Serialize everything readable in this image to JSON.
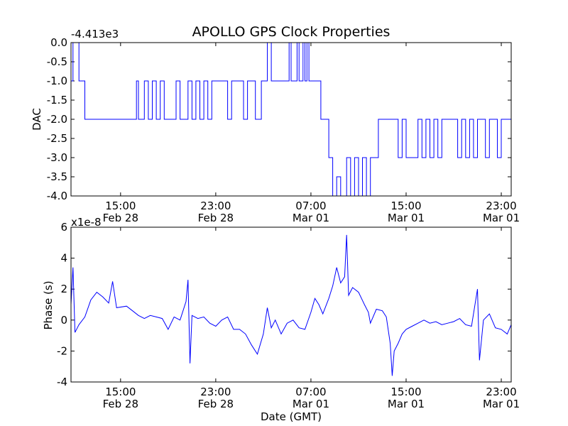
{
  "chart_data": [
    {
      "type": "line",
      "title": "APOLLO GPS Clock Properties",
      "xlabel": "",
      "ylabel": "DAC",
      "offset_text": "-4.413e3",
      "x_axis_type": "date",
      "xlim": [
        "Feb 28 10:50",
        "Mar 01 23:50"
      ],
      "ylim": [
        -4.0,
        0.0
      ],
      "x_ticks": [
        {
          "time": "Feb 28 15:00",
          "line1": "15:00",
          "line2": "Feb 28"
        },
        {
          "time": "Feb 28 23:00",
          "line1": "23:00",
          "line2": "Feb 28"
        },
        {
          "time": "Mar 01 07:00",
          "line1": "07:00",
          "line2": "Mar 01"
        },
        {
          "time": "Mar 01 15:00",
          "line1": "15:00",
          "line2": "Mar 01"
        },
        {
          "time": "Mar 01 23:00",
          "line1": "23:00",
          "line2": "Mar 01"
        }
      ],
      "y_ticks": [
        {
          "value": 0.0,
          "label": "0.0"
        },
        {
          "value": -0.5,
          "label": "-0.5"
        },
        {
          "value": -1.0,
          "label": "-1.0"
        },
        {
          "value": -1.5,
          "label": "-1.5"
        },
        {
          "value": -2.0,
          "label": "-2.0"
        },
        {
          "value": -2.5,
          "label": "-2.5"
        },
        {
          "value": -3.0,
          "label": "-3.0"
        },
        {
          "value": -3.5,
          "label": "-3.5"
        },
        {
          "value": -4.0,
          "label": "-4.0"
        }
      ],
      "series": [
        {
          "color": "#0000ff",
          "points": [
            {
              "x": "Feb 28 10:50",
              "y": -1.0
            },
            {
              "x": "Feb 28 11:00",
              "y": 0.0
            },
            {
              "x": "Feb 28 11:30",
              "y": -1.0
            },
            {
              "x": "Feb 28 12:00",
              "y": -2.0
            },
            {
              "x": "Feb 28 15:40",
              "y": -2.0
            },
            {
              "x": "Feb 28 16:20",
              "y": -1.0
            },
            {
              "x": "Feb 28 16:30",
              "y": -2.0
            },
            {
              "x": "Feb 28 17:00",
              "y": -1.0
            },
            {
              "x": "Feb 28 17:20",
              "y": -2.0
            },
            {
              "x": "Feb 28 17:40",
              "y": -1.0
            },
            {
              "x": "Feb 28 18:00",
              "y": -2.0
            },
            {
              "x": "Feb 28 18:20",
              "y": -1.0
            },
            {
              "x": "Feb 28 18:40",
              "y": -2.0
            },
            {
              "x": "Feb 28 19:40",
              "y": -1.0
            },
            {
              "x": "Feb 28 20:00",
              "y": -2.0
            },
            {
              "x": "Feb 28 20:40",
              "y": -1.0
            },
            {
              "x": "Feb 28 21:00",
              "y": -2.0
            },
            {
              "x": "Feb 28 21:20",
              "y": -1.0
            },
            {
              "x": "Feb 28 21:40",
              "y": -2.0
            },
            {
              "x": "Feb 28 22:00",
              "y": -1.0
            },
            {
              "x": "Feb 28 22:20",
              "y": -2.0
            },
            {
              "x": "Feb 28 22:40",
              "y": -1.0
            },
            {
              "x": "Feb 28 23:40",
              "y": -1.0
            },
            {
              "x": "Mar 01 00:00",
              "y": -2.0
            },
            {
              "x": "Mar 01 00:20",
              "y": -1.0
            },
            {
              "x": "Mar 01 01:00",
              "y": -1.0
            },
            {
              "x": "Mar 01 01:20",
              "y": -2.0
            },
            {
              "x": "Mar 01 01:40",
              "y": -1.0
            },
            {
              "x": "Mar 01 02:10",
              "y": -1.0
            },
            {
              "x": "Mar 01 02:20",
              "y": -2.0
            },
            {
              "x": "Mar 01 02:50",
              "y": -1.0
            },
            {
              "x": "Mar 01 03:20",
              "y": 0.0
            },
            {
              "x": "Mar 01 03:40",
              "y": -1.0
            },
            {
              "x": "Mar 01 04:50",
              "y": -1.0
            },
            {
              "x": "Mar 01 05:10",
              "y": 0.0
            },
            {
              "x": "Mar 01 05:20",
              "y": -1.0
            },
            {
              "x": "Mar 01 05:50",
              "y": 0.0
            },
            {
              "x": "Mar 01 06:00",
              "y": -1.0
            },
            {
              "x": "Mar 01 06:20",
              "y": 0.0
            },
            {
              "x": "Mar 01 06:30",
              "y": -1.0
            },
            {
              "x": "Mar 01 06:40",
              "y": 0.0
            },
            {
              "x": "Mar 01 06:50",
              "y": -1.0
            },
            {
              "x": "Mar 01 07:30",
              "y": -1.0
            },
            {
              "x": "Mar 01 07:50",
              "y": -2.0
            },
            {
              "x": "Mar 01 08:30",
              "y": -3.0
            },
            {
              "x": "Mar 01 08:50",
              "y": -4.0
            },
            {
              "x": "Mar 01 09:10",
              "y": -3.5
            },
            {
              "x": "Mar 01 09:30",
              "y": -4.0
            },
            {
              "x": "Mar 01 10:00",
              "y": -3.0
            },
            {
              "x": "Mar 01 10:20",
              "y": -4.0
            },
            {
              "x": "Mar 01 10:40",
              "y": -3.0
            },
            {
              "x": "Mar 01 11:00",
              "y": -4.0
            },
            {
              "x": "Mar 01 11:20",
              "y": -3.0
            },
            {
              "x": "Mar 01 11:40",
              "y": -4.0
            },
            {
              "x": "Mar 01 12:00",
              "y": -3.0
            },
            {
              "x": "Mar 01 12:40",
              "y": -2.0
            },
            {
              "x": "Mar 01 14:00",
              "y": -2.0
            },
            {
              "x": "Mar 01 14:20",
              "y": -3.0
            },
            {
              "x": "Mar 01 14:40",
              "y": -2.0
            },
            {
              "x": "Mar 01 15:00",
              "y": -3.0
            },
            {
              "x": "Mar 01 15:40",
              "y": -3.0
            },
            {
              "x": "Mar 01 16:00",
              "y": -2.0
            },
            {
              "x": "Mar 01 16:20",
              "y": -3.0
            },
            {
              "x": "Mar 01 16:40",
              "y": -2.0
            },
            {
              "x": "Mar 01 17:00",
              "y": -3.0
            },
            {
              "x": "Mar 01 17:20",
              "y": -2.0
            },
            {
              "x": "Mar 01 17:40",
              "y": -3.0
            },
            {
              "x": "Mar 01 18:00",
              "y": -2.0
            },
            {
              "x": "Mar 01 19:00",
              "y": -2.0
            },
            {
              "x": "Mar 01 19:20",
              "y": -3.0
            },
            {
              "x": "Mar 01 19:40",
              "y": -2.0
            },
            {
              "x": "Mar 01 20:00",
              "y": -3.0
            },
            {
              "x": "Mar 01 20:20",
              "y": -2.0
            },
            {
              "x": "Mar 01 20:40",
              "y": -3.0
            },
            {
              "x": "Mar 01 21:00",
              "y": -2.0
            },
            {
              "x": "Mar 01 21:20",
              "y": -2.0
            },
            {
              "x": "Mar 01 21:40",
              "y": -3.0
            },
            {
              "x": "Mar 01 22:00",
              "y": -2.0
            },
            {
              "x": "Mar 01 22:40",
              "y": -3.0
            },
            {
              "x": "Mar 01 23:00",
              "y": -2.0
            },
            {
              "x": "Mar 01 23:50",
              "y": -2.0
            }
          ]
        }
      ]
    },
    {
      "type": "line",
      "title": "",
      "xlabel": "Date (GMT)",
      "ylabel": "Phase (s)",
      "offset_text": "x1e-8",
      "x_axis_type": "date",
      "xlim": [
        "Feb 28 10:50",
        "Mar 01 23:50"
      ],
      "ylim": [
        -4,
        6
      ],
      "x_ticks": [
        {
          "time": "Feb 28 15:00",
          "line1": "15:00",
          "line2": "Feb 28"
        },
        {
          "time": "Feb 28 23:00",
          "line1": "23:00",
          "line2": "Feb 28"
        },
        {
          "time": "Mar 01 07:00",
          "line1": "07:00",
          "line2": "Mar 01"
        },
        {
          "time": "Mar 01 15:00",
          "line1": "15:00",
          "line2": "Mar 01"
        },
        {
          "time": "Mar 01 23:00",
          "line1": "23:00",
          "line2": "Mar 01"
        }
      ],
      "y_ticks": [
        {
          "value": 6,
          "label": "6"
        },
        {
          "value": 4,
          "label": "4"
        },
        {
          "value": 2,
          "label": "2"
        },
        {
          "value": 0,
          "label": "0"
        },
        {
          "value": -2,
          "label": "-2"
        },
        {
          "value": -4,
          "label": "-4"
        }
      ],
      "series": [
        {
          "color": "#0000ff",
          "points": [
            {
              "x": "Feb 28 10:50",
              "y": 1.0
            },
            {
              "x": "Feb 28 11:00",
              "y": 3.4
            },
            {
              "x": "Feb 28 11:10",
              "y": -0.8
            },
            {
              "x": "Feb 28 11:30",
              "y": -0.3
            },
            {
              "x": "Feb 28 12:00",
              "y": 0.2
            },
            {
              "x": "Feb 28 12:30",
              "y": 1.3
            },
            {
              "x": "Feb 28 13:00",
              "y": 1.8
            },
            {
              "x": "Feb 28 13:30",
              "y": 1.5
            },
            {
              "x": "Feb 28 14:00",
              "y": 1.1
            },
            {
              "x": "Feb 28 14:20",
              "y": 2.5
            },
            {
              "x": "Feb 28 14:40",
              "y": 0.8
            },
            {
              "x": "Feb 28 15:30",
              "y": 0.9
            },
            {
              "x": "Feb 28 16:00",
              "y": 0.6
            },
            {
              "x": "Feb 28 16:30",
              "y": 0.3
            },
            {
              "x": "Feb 28 17:00",
              "y": 0.1
            },
            {
              "x": "Feb 28 17:30",
              "y": 0.3
            },
            {
              "x": "Feb 28 18:00",
              "y": 0.2
            },
            {
              "x": "Feb 28 18:30",
              "y": 0.1
            },
            {
              "x": "Feb 28 19:00",
              "y": -0.6
            },
            {
              "x": "Feb 28 19:30",
              "y": 0.2
            },
            {
              "x": "Feb 28 20:00",
              "y": 0.0
            },
            {
              "x": "Feb 28 20:30",
              "y": 1.2
            },
            {
              "x": "Feb 28 20:40",
              "y": 2.6
            },
            {
              "x": "Feb 28 20:50",
              "y": -2.8
            },
            {
              "x": "Feb 28 21:00",
              "y": 0.3
            },
            {
              "x": "Feb 28 21:30",
              "y": 0.1
            },
            {
              "x": "Feb 28 22:00",
              "y": 0.2
            },
            {
              "x": "Feb 28 22:30",
              "y": -0.2
            },
            {
              "x": "Feb 28 23:00",
              "y": -0.4
            },
            {
              "x": "Feb 28 23:30",
              "y": 0.0
            },
            {
              "x": "Mar 01 00:00",
              "y": 0.2
            },
            {
              "x": "Mar 01 00:30",
              "y": -0.6
            },
            {
              "x": "Mar 01 01:00",
              "y": -0.6
            },
            {
              "x": "Mar 01 01:30",
              "y": -0.9
            },
            {
              "x": "Mar 01 02:00",
              "y": -1.6
            },
            {
              "x": "Mar 01 02:30",
              "y": -2.2
            },
            {
              "x": "Mar 01 03:00",
              "y": -0.9
            },
            {
              "x": "Mar 01 03:20",
              "y": 0.8
            },
            {
              "x": "Mar 01 03:40",
              "y": -0.5
            },
            {
              "x": "Mar 01 04:00",
              "y": 0.0
            },
            {
              "x": "Mar 01 04:30",
              "y": -0.9
            },
            {
              "x": "Mar 01 05:00",
              "y": -0.2
            },
            {
              "x": "Mar 01 05:30",
              "y": 0.0
            },
            {
              "x": "Mar 01 06:00",
              "y": -0.5
            },
            {
              "x": "Mar 01 06:30",
              "y": -0.6
            },
            {
              "x": "Mar 01 07:00",
              "y": 0.5
            },
            {
              "x": "Mar 01 07:20",
              "y": 1.4
            },
            {
              "x": "Mar 01 07:40",
              "y": 1.0
            },
            {
              "x": "Mar 01 08:00",
              "y": 0.4
            },
            {
              "x": "Mar 01 08:30",
              "y": 1.4
            },
            {
              "x": "Mar 01 08:50",
              "y": 2.2
            },
            {
              "x": "Mar 01 09:10",
              "y": 3.4
            },
            {
              "x": "Mar 01 09:30",
              "y": 2.4
            },
            {
              "x": "Mar 01 09:50",
              "y": 2.8
            },
            {
              "x": "Mar 01 10:00",
              "y": 5.5
            },
            {
              "x": "Mar 01 10:10",
              "y": 1.6
            },
            {
              "x": "Mar 01 10:30",
              "y": 2.1
            },
            {
              "x": "Mar 01 11:00",
              "y": 1.8
            },
            {
              "x": "Mar 01 11:30",
              "y": 1.0
            },
            {
              "x": "Mar 01 11:50",
              "y": 0.5
            },
            {
              "x": "Mar 01 12:00",
              "y": -0.2
            },
            {
              "x": "Mar 01 12:30",
              "y": 0.7
            },
            {
              "x": "Mar 01 13:00",
              "y": 0.6
            },
            {
              "x": "Mar 01 13:20",
              "y": 0.2
            },
            {
              "x": "Mar 01 13:40",
              "y": -1.5
            },
            {
              "x": "Mar 01 13:50",
              "y": -3.6
            },
            {
              "x": "Mar 01 14:00",
              "y": -2.0
            },
            {
              "x": "Mar 01 14:20",
              "y": -1.5
            },
            {
              "x": "Mar 01 14:40",
              "y": -0.9
            },
            {
              "x": "Mar 01 15:00",
              "y": -0.6
            },
            {
              "x": "Mar 01 15:30",
              "y": -0.4
            },
            {
              "x": "Mar 01 16:00",
              "y": -0.2
            },
            {
              "x": "Mar 01 16:30",
              "y": 0.0
            },
            {
              "x": "Mar 01 17:00",
              "y": -0.2
            },
            {
              "x": "Mar 01 17:30",
              "y": -0.1
            },
            {
              "x": "Mar 01 18:00",
              "y": -0.3
            },
            {
              "x": "Mar 01 18:30",
              "y": -0.2
            },
            {
              "x": "Mar 01 19:00",
              "y": -0.1
            },
            {
              "x": "Mar 01 19:30",
              "y": 0.1
            },
            {
              "x": "Mar 01 20:00",
              "y": -0.3
            },
            {
              "x": "Mar 01 20:30",
              "y": -0.4
            },
            {
              "x": "Mar 01 20:50",
              "y": 1.2
            },
            {
              "x": "Mar 01 21:00",
              "y": 2.0
            },
            {
              "x": "Mar 01 21:10",
              "y": -2.6
            },
            {
              "x": "Mar 01 21:30",
              "y": 0.0
            },
            {
              "x": "Mar 01 22:00",
              "y": 0.4
            },
            {
              "x": "Mar 01 22:30",
              "y": -0.5
            },
            {
              "x": "Mar 01 23:00",
              "y": -0.6
            },
            {
              "x": "Mar 01 23:30",
              "y": -0.9
            },
            {
              "x": "Mar 01 23:50",
              "y": -0.3
            }
          ]
        }
      ]
    }
  ]
}
